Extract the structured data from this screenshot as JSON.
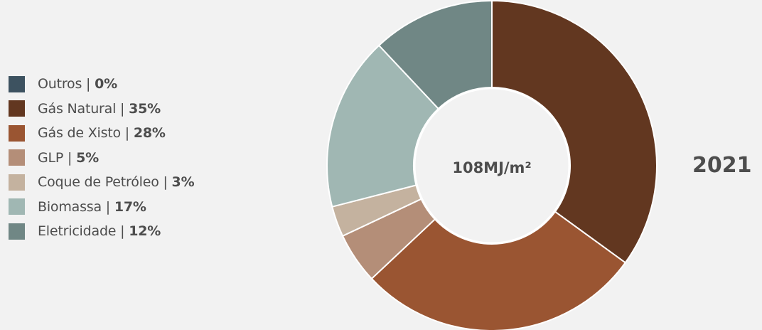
{
  "chart_data": {
    "type": "pie",
    "center_label": "108MJ/m²",
    "year": "2021",
    "slices": [
      {
        "label": "Outros",
        "pct_text": "0%",
        "value": 0,
        "color": "#3d5260"
      },
      {
        "label": "Gás Natural",
        "pct_text": "35%",
        "value": 35,
        "color": "#623720"
      },
      {
        "label": "Gás de Xisto",
        "pct_text": "28%",
        "value": 28,
        "color": "#9a5532"
      },
      {
        "label": "GLP",
        "pct_text": "5%",
        "value": 5,
        "color": "#b48e78"
      },
      {
        "label": "Coque de Petróleo",
        "pct_text": "3%",
        "value": 3,
        "color": "#c4b29f"
      },
      {
        "label": "Biomassa",
        "pct_text": "17%",
        "value": 17,
        "color": "#a0b7b3"
      },
      {
        "label": "Eletricidade",
        "pct_text": "12%",
        "value": 12,
        "color": "#708785"
      }
    ],
    "legend_position": "left"
  }
}
